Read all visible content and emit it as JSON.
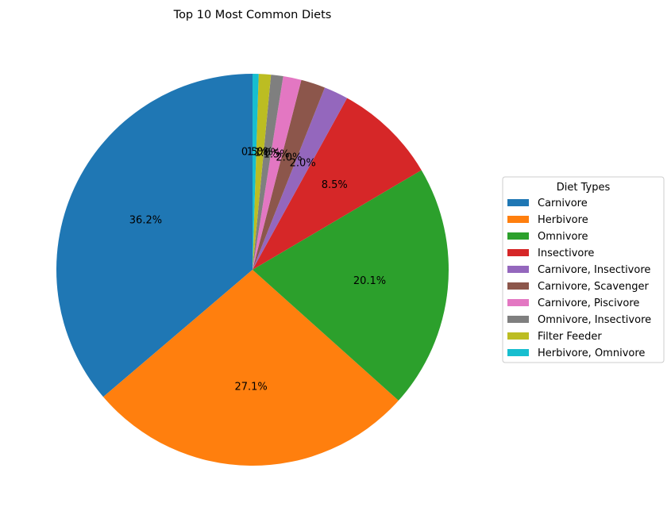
{
  "chart_data": {
    "type": "pie",
    "title": "Top 10 Most Common Diets",
    "legend_title": "Diet Types",
    "legend_position": "right",
    "start_angle_deg": 90,
    "direction": "counterclockwise",
    "slices": [
      {
        "label": "Carnivore",
        "value": 36.2,
        "pct_label": "36.2%",
        "color": "#1f77b4"
      },
      {
        "label": "Herbivore",
        "value": 27.1,
        "pct_label": "27.1%",
        "color": "#ff7f0e"
      },
      {
        "label": "Omnivore",
        "value": 20.1,
        "pct_label": "20.1%",
        "color": "#2ca02c"
      },
      {
        "label": "Insectivore",
        "value": 8.5,
        "pct_label": "8.5%",
        "color": "#d62728"
      },
      {
        "label": "Carnivore, Insectivore",
        "value": 2.0,
        "pct_label": "2.0%",
        "color": "#9467bd"
      },
      {
        "label": "Carnivore, Scavenger",
        "value": 2.0,
        "pct_label": "2.0%",
        "color": "#8c564b"
      },
      {
        "label": "Carnivore, Piscivore",
        "value": 1.5,
        "pct_label": "1.5%",
        "color": "#e377c2"
      },
      {
        "label": "Omnivore, Insectivore",
        "value": 1.0,
        "pct_label": "1.0%",
        "color": "#7f7f7f"
      },
      {
        "label": "Filter Feeder",
        "value": 1.0,
        "pct_label": "1.0%",
        "color": "#bcbd22"
      },
      {
        "label": "Herbivore, Omnivore",
        "value": 0.5,
        "pct_label": "0.5%",
        "color": "#17becf"
      }
    ]
  }
}
